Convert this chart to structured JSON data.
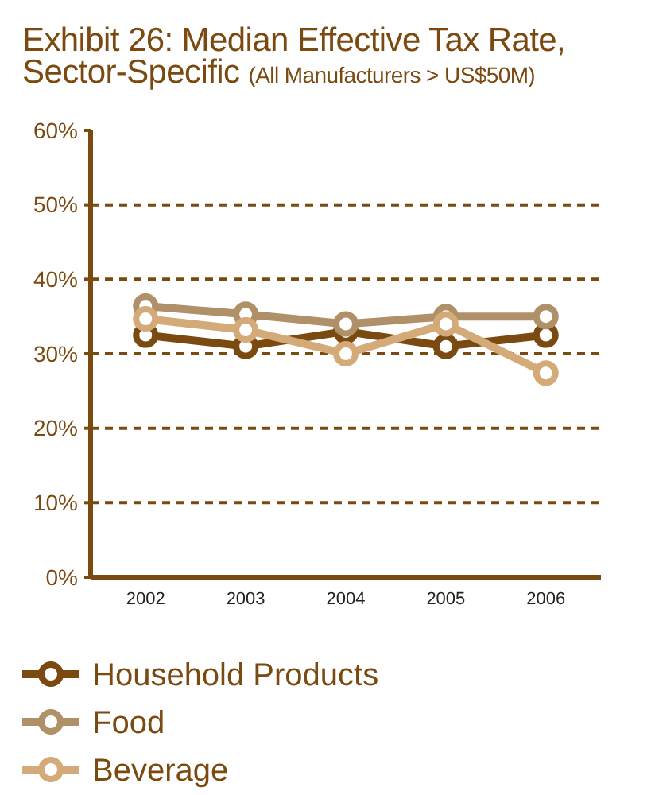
{
  "chart_data": {
    "type": "line",
    "title": "Exhibit 26: Median Effective Tax Rate, Sector-Specific",
    "subtitle": "(All Manufacturers > US$50M)",
    "categories": [
      "2002",
      "2003",
      "2004",
      "2005",
      "2006"
    ],
    "series": [
      {
        "name": "Household Products",
        "color": "#7a4a10",
        "values": [
          32.5,
          31,
          33,
          31,
          32.5
        ]
      },
      {
        "name": "Food",
        "color": "#b09068",
        "values": [
          36.4,
          35.3,
          34,
          35,
          35
        ]
      },
      {
        "name": "Beverage",
        "color": "#d4aa78",
        "values": [
          34.7,
          33.2,
          30,
          34,
          27.4
        ]
      }
    ],
    "ylim": [
      0,
      60
    ],
    "yticks": [
      {
        "value": 0,
        "label": "0%"
      },
      {
        "value": 10,
        "label": "10%"
      },
      {
        "value": 20,
        "label": "20%"
      },
      {
        "value": 30,
        "label": "30%"
      },
      {
        "value": 40,
        "label": "40%"
      },
      {
        "value": 50,
        "label": "50%"
      },
      {
        "value": 60,
        "label": "60%"
      }
    ],
    "grid": "y",
    "legend": "bottom",
    "marker": "circle",
    "line_style": "solid"
  }
}
